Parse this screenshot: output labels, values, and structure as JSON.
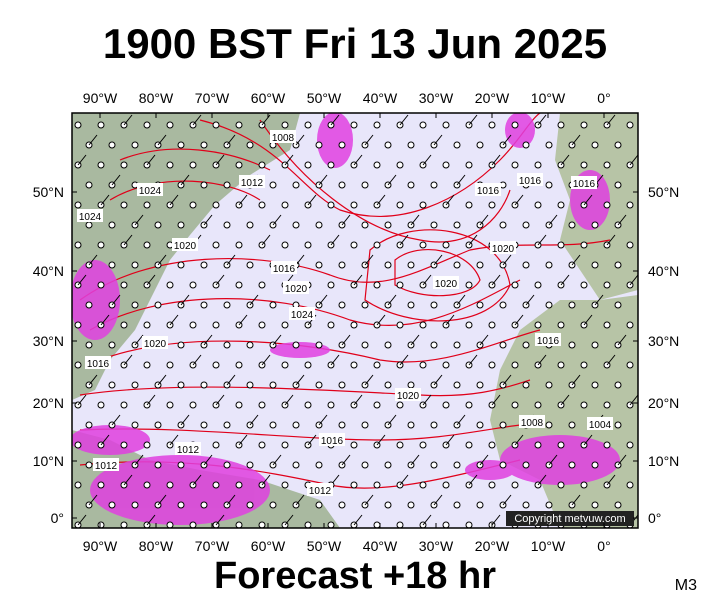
{
  "header": {
    "title": "1900 BST Fri 13 Jun 2025"
  },
  "map": {
    "lon_labels": [
      "90°W",
      "80°W",
      "70°W",
      "60°W",
      "50°W",
      "40°W",
      "30°W",
      "20°W",
      "10°W",
      "0°"
    ],
    "lat_labels": [
      "50°N",
      "40°N",
      "30°N",
      "20°N",
      "10°N",
      "0°"
    ],
    "isobar_labels": [
      "1008",
      "1024",
      "1012",
      "1024",
      "1020",
      "1016",
      "1020",
      "1024",
      "1020",
      "1020",
      "1016",
      "1016",
      "1016",
      "1016",
      "1020",
      "1016",
      "1020",
      "1016",
      "1012",
      "1012",
      "1012",
      "1008",
      "1004"
    ],
    "copyright": "Copyright metvuw.com"
  },
  "footer": {
    "forecast": "Forecast +18 hr",
    "model": "M3"
  }
}
